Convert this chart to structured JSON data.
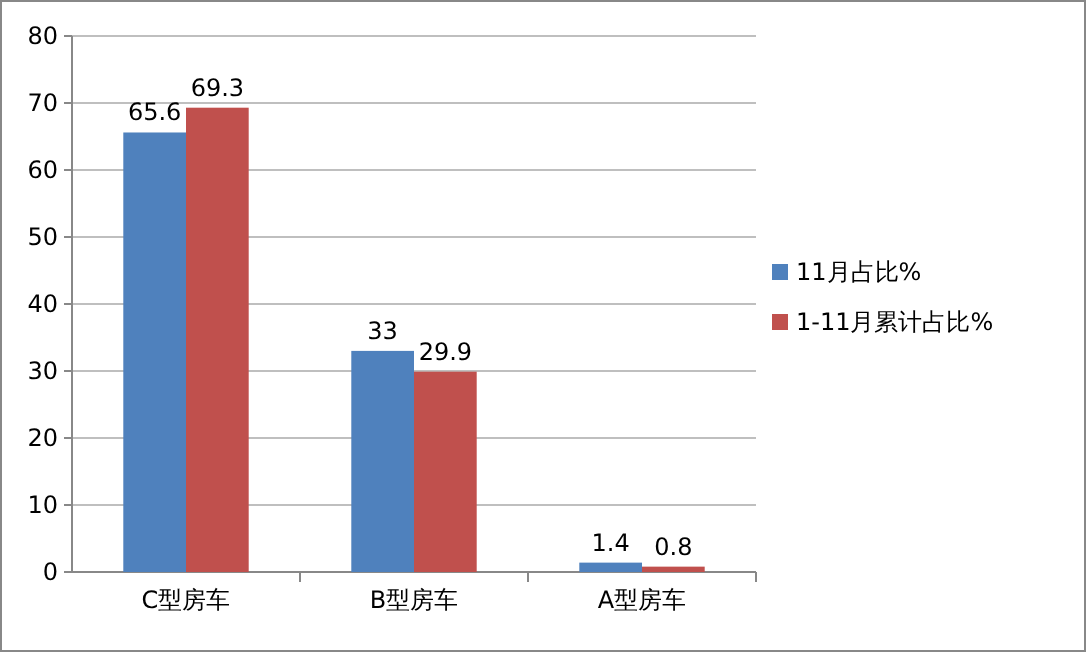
{
  "chart_data": {
    "type": "bar",
    "categories": [
      "C型房车",
      "B型房车",
      "A型房车"
    ],
    "series": [
      {
        "name": "11月占比%",
        "color": "#4f81bd",
        "values": [
          65.6,
          33,
          1.4
        ]
      },
      {
        "name": "1-11月累计占比%",
        "color": "#c0504d",
        "values": [
          69.3,
          29.9,
          0.8
        ]
      }
    ],
    "ylim": [
      0,
      80
    ],
    "yticks": [
      0,
      10,
      20,
      30,
      40,
      50,
      60,
      70,
      80
    ],
    "grid": "y",
    "legend": "right",
    "data_labels": true
  }
}
